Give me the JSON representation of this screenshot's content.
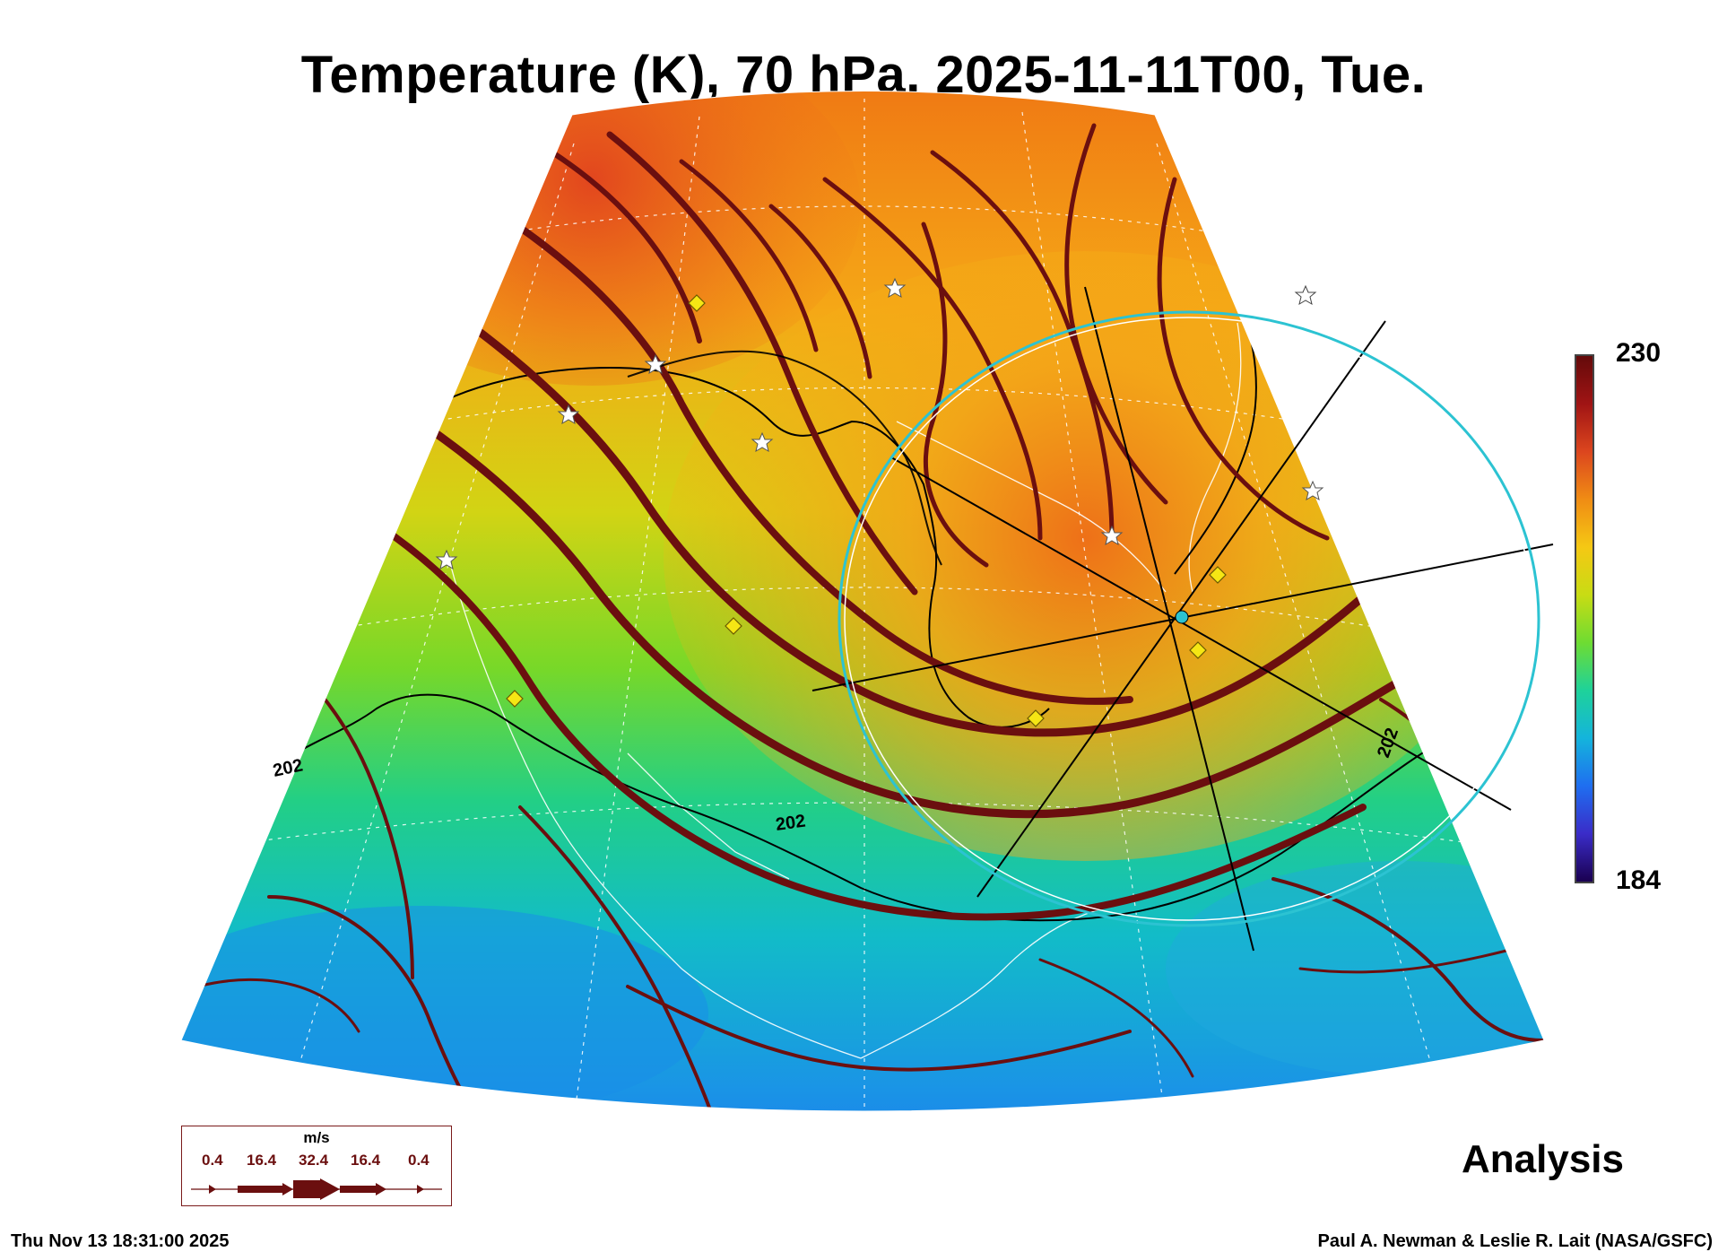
{
  "title": "Temperature (K), 70 hPa, 2025-11-11T00, Tue.",
  "colorbar": {
    "max_label": "230",
    "min_label": "184",
    "max_value": 230,
    "min_value": 184,
    "colors": [
      "#1a0050",
      "#3a2cc8",
      "#1f6ef0",
      "#14b4dc",
      "#1ed29a",
      "#6edc32",
      "#c8dc14",
      "#f5c814",
      "#f08c14",
      "#dc461e",
      "#a01414",
      "#640a0a"
    ]
  },
  "contour_labels": [
    "202",
    "202",
    "202"
  ],
  "wind_legend": {
    "unit": "m/s",
    "values": [
      "0.4",
      "16.4",
      "32.4",
      "16.4",
      "0.4"
    ]
  },
  "analysis_label": "Analysis",
  "footer": {
    "timestamp": "Thu Nov 13 18:31:00 2025",
    "credit": "Paul A. Newman & Leslie R. Lait (NASA/GSFC)"
  },
  "colors": {
    "streamline": "#6b0f0f",
    "contour": "#000000",
    "ring": "#2cc3d2",
    "marker_diamond": "#f5e614",
    "marker_star": "#ffffff"
  },
  "markers": {
    "diamond_icon": "diamond-marker-icon",
    "star_icon": "star-marker-icon"
  }
}
